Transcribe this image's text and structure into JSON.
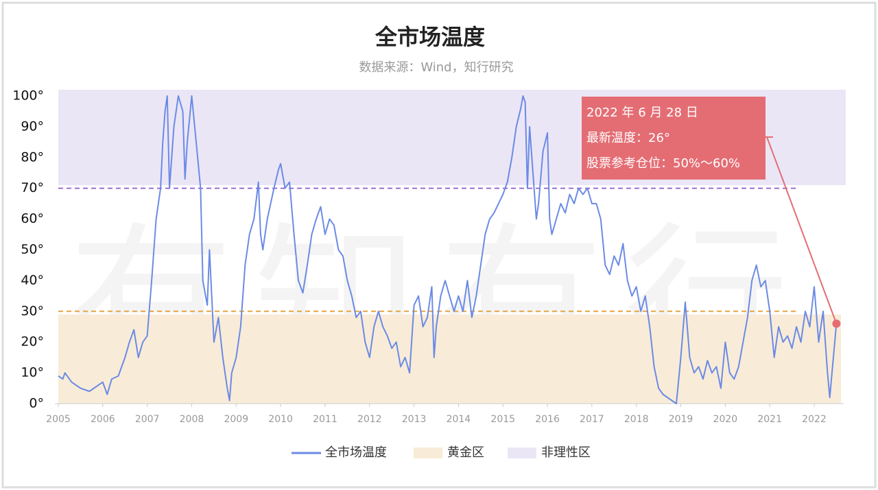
{
  "chart_data": {
    "type": "line",
    "title": "全市场温度",
    "subtitle": "数据来源：Wind，知行研究",
    "watermark": "有知有行",
    "x": [
      2005.0,
      2005.1,
      2005.15,
      2005.3,
      2005.5,
      2005.7,
      2005.9,
      2006.0,
      2006.1,
      2006.2,
      2006.35,
      2006.5,
      2006.6,
      2006.7,
      2006.8,
      2006.9,
      2007.0,
      2007.1,
      2007.2,
      2007.3,
      2007.35,
      2007.4,
      2007.45,
      2007.5,
      2007.6,
      2007.7,
      2007.8,
      2007.85,
      2007.9,
      2008.0,
      2008.1,
      2008.2,
      2008.25,
      2008.35,
      2008.4,
      2008.5,
      2008.6,
      2008.7,
      2008.8,
      2008.85,
      2008.9,
      2009.0,
      2009.1,
      2009.2,
      2009.3,
      2009.4,
      2009.5,
      2009.55,
      2009.6,
      2009.7,
      2009.85,
      2009.95,
      2010.0,
      2010.1,
      2010.2,
      2010.3,
      2010.4,
      2010.5,
      2010.6,
      2010.7,
      2010.8,
      2010.9,
      2011.0,
      2011.1,
      2011.2,
      2011.3,
      2011.4,
      2011.5,
      2011.6,
      2011.7,
      2011.8,
      2011.9,
      2012.0,
      2012.1,
      2012.2,
      2012.3,
      2012.4,
      2012.5,
      2012.6,
      2012.7,
      2012.8,
      2012.9,
      2013.0,
      2013.1,
      2013.2,
      2013.3,
      2013.4,
      2013.45,
      2013.5,
      2013.6,
      2013.7,
      2013.8,
      2013.9,
      2014.0,
      2014.1,
      2014.2,
      2014.3,
      2014.4,
      2014.5,
      2014.6,
      2014.7,
      2014.8,
      2014.9,
      2015.0,
      2015.1,
      2015.2,
      2015.3,
      2015.4,
      2015.45,
      2015.5,
      2015.55,
      2015.6,
      2015.7,
      2015.75,
      2015.8,
      2015.9,
      2016.0,
      2016.05,
      2016.1,
      2016.2,
      2016.3,
      2016.4,
      2016.5,
      2016.6,
      2016.7,
      2016.8,
      2016.9,
      2017.0,
      2017.1,
      2017.2,
      2017.3,
      2017.4,
      2017.5,
      2017.6,
      2017.7,
      2017.8,
      2017.9,
      2018.0,
      2018.1,
      2018.2,
      2018.3,
      2018.4,
      2018.5,
      2018.6,
      2018.7,
      2018.8,
      2018.9,
      2019.0,
      2019.1,
      2019.2,
      2019.3,
      2019.4,
      2019.5,
      2019.6,
      2019.7,
      2019.8,
      2019.9,
      2020.0,
      2020.1,
      2020.2,
      2020.3,
      2020.4,
      2020.5,
      2020.6,
      2020.7,
      2020.8,
      2020.9,
      2021.0,
      2021.1,
      2021.2,
      2021.3,
      2021.4,
      2021.5,
      2021.6,
      2021.7,
      2021.8,
      2021.9,
      2022.0,
      2022.1,
      2022.2,
      2022.3,
      2022.35,
      2022.4,
      2022.5
    ],
    "series": [
      {
        "name": "全市场温度",
        "color": "#6b8ae6",
        "values": [
          9,
          8,
          10,
          7,
          5,
          4,
          6,
          7,
          3,
          8,
          9,
          15,
          20,
          24,
          15,
          20,
          22,
          40,
          60,
          70,
          85,
          95,
          100,
          70,
          90,
          100,
          95,
          73,
          85,
          100,
          85,
          70,
          40,
          32,
          50,
          20,
          28,
          15,
          5,
          1,
          10,
          15,
          25,
          45,
          55,
          60,
          72,
          55,
          50,
          60,
          70,
          76,
          78,
          70,
          72,
          55,
          40,
          36,
          45,
          55,
          60,
          64,
          55,
          60,
          58,
          50,
          48,
          40,
          35,
          28,
          30,
          20,
          15,
          25,
          30,
          25,
          22,
          18,
          20,
          12,
          15,
          10,
          32,
          35,
          25,
          28,
          38,
          15,
          25,
          35,
          40,
          35,
          30,
          35,
          30,
          40,
          28,
          35,
          45,
          55,
          60,
          62,
          65,
          68,
          72,
          80,
          90,
          96,
          100,
          98,
          70,
          90,
          70,
          60,
          65,
          82,
          88,
          60,
          55,
          60,
          65,
          62,
          68,
          65,
          70,
          68,
          70,
          65,
          65,
          60,
          45,
          42,
          48,
          45,
          52,
          40,
          35,
          38,
          30,
          35,
          25,
          12,
          5,
          3,
          2,
          1,
          0,
          15,
          33,
          15,
          10,
          12,
          8,
          14,
          10,
          12,
          5,
          20,
          10,
          8,
          12,
          20,
          28,
          40,
          45,
          38,
          40,
          30,
          15,
          25,
          20,
          22,
          18,
          25,
          20,
          30,
          25,
          38,
          20,
          30,
          10,
          2,
          10,
          26
        ]
      }
    ],
    "zones": [
      {
        "name": "黄金区",
        "color": "#f8ecd8",
        "range": [
          0,
          29
        ]
      },
      {
        "name": "非理性区",
        "color": "#ebe6f6",
        "range": [
          71,
          102
        ]
      }
    ],
    "reference_lines": [
      {
        "value": 30,
        "color": "#e6a33e"
      },
      {
        "value": 70,
        "color": "#9b6fd6"
      }
    ],
    "annotation": {
      "lines": [
        "2022 年 6 月 28 日",
        "最新温度：26°",
        "股票参考仓位：50%～60%"
      ],
      "color": "#e46d74"
    },
    "xlim": [
      2005,
      2022.7
    ],
    "xticks": [
      2005,
      2006,
      2007,
      2008,
      2009,
      2010,
      2011,
      2012,
      2013,
      2014,
      2015,
      2016,
      2017,
      2018,
      2019,
      2020,
      2021,
      2022
    ],
    "ylim": [
      0,
      100
    ],
    "yticks": [
      {
        "value": 0,
        "label": "0°"
      },
      {
        "value": 10,
        "label": "10°"
      },
      {
        "value": 20,
        "label": "20°"
      },
      {
        "value": 30,
        "label": "30°"
      },
      {
        "value": 40,
        "label": "40°"
      },
      {
        "value": 50,
        "label": "50°"
      },
      {
        "value": 60,
        "label": "60°"
      },
      {
        "value": 70,
        "label": "70°"
      },
      {
        "value": 80,
        "label": "80°"
      },
      {
        "value": 90,
        "label": "90°"
      },
      {
        "value": 100,
        "label": "100°"
      }
    ]
  }
}
